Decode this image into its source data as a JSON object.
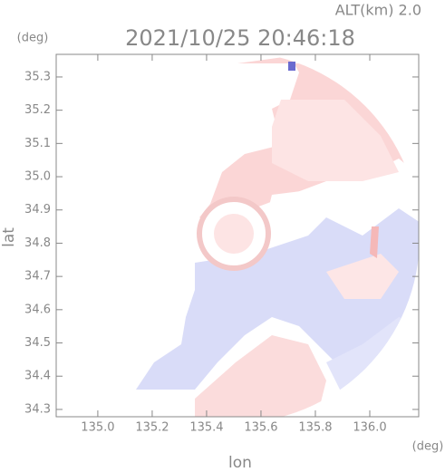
{
  "chart_data": {
    "type": "map",
    "title": "2021/10/25 20:46:18",
    "subtitle": "ALT(km) 2.0",
    "xlabel": "lon",
    "ylabel": "lat",
    "xunit": "(deg)",
    "yunit": "(deg)",
    "xlim": [
      134.847,
      136.18
    ],
    "ylim": [
      34.278,
      35.368
    ],
    "xticks": [
      {
        "value": 135,
        "label": "135.0"
      },
      135.2,
      135.4,
      135.6,
      135.8,
      {
        "value": 136,
        "label": "136.0"
      }
    ],
    "yticks": [
      34.3,
      34.4,
      34.5,
      34.6,
      34.7,
      34.8,
      34.9,
      {
        "value": 35,
        "label": "35.0"
      },
      35.1,
      35.2,
      35.3
    ]
  }
}
